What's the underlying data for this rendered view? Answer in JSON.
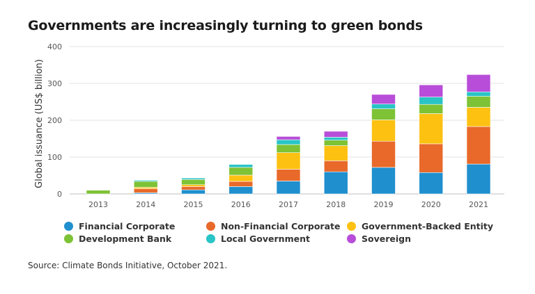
{
  "title": "Governments are increasingly turning to green bonds",
  "source": "Source: Climate Bonds Initiative, October 2021.",
  "chart_data": {
    "type": "bar",
    "stacked": true,
    "ylabel": "Global issuance (US$ billion)",
    "xlabel": "",
    "ylim": [
      0,
      400
    ],
    "yticks": [
      0,
      100,
      200,
      300,
      400
    ],
    "grid": true,
    "legend_position": "bottom",
    "categories": [
      "2013",
      "2014",
      "2015",
      "2016",
      "2017",
      "2018",
      "2019",
      "2020",
      "2021"
    ],
    "series": [
      {
        "name": "Financial Corporate",
        "color": "#1f8fce",
        "values": [
          0,
          3,
          11,
          20,
          35,
          60,
          72,
          58,
          81
        ]
      },
      {
        "name": "Non-Financial Corporate",
        "color": "#e8692a",
        "values": [
          0,
          11,
          9,
          14,
          32,
          30,
          71,
          78,
          102
        ]
      },
      {
        "name": "Government-Backed Entity",
        "color": "#fdc112",
        "values": [
          0,
          4,
          5,
          17,
          45,
          41,
          58,
          82,
          52
        ]
      },
      {
        "name": "Development Bank",
        "color": "#7ec236",
        "values": [
          10,
          16,
          14,
          21,
          22,
          15,
          30,
          25,
          30
        ]
      },
      {
        "name": "Local Government",
        "color": "#29c4c6",
        "values": [
          0,
          3,
          4,
          8,
          13,
          8,
          13,
          20,
          12
        ]
      },
      {
        "name": "Sovereign",
        "color": "#b84dd9",
        "values": [
          0,
          0,
          0,
          0,
          9,
          16,
          26,
          33,
          47
        ]
      }
    ]
  }
}
